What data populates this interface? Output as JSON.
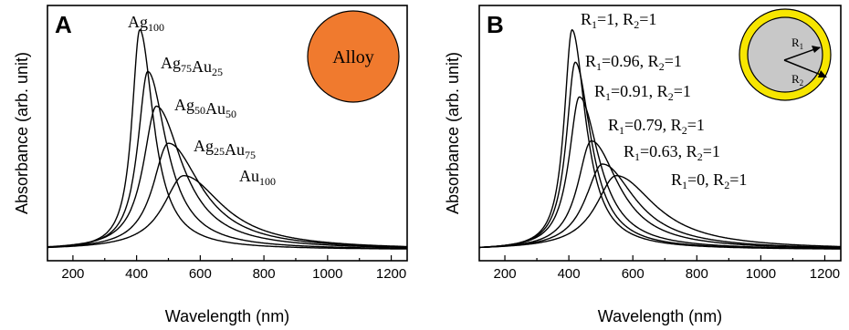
{
  "colors": {
    "alloy_circle": "#f07a2e",
    "shell_yellow": "#f7e600",
    "core_gray": "#c8c8c8",
    "curve": "#000000"
  },
  "chart_data": [
    {
      "panel": "A",
      "type": "line",
      "xlabel": "Wavelength (nm)",
      "ylabel": "Absorbance (arb. unit)",
      "xlim": [
        120,
        1250
      ],
      "xticks": [
        200,
        400,
        600,
        800,
        1000,
        1200
      ],
      "yticks": false,
      "badge": "Alloy",
      "series": [
        {
          "name": "Ag100",
          "label": {
            "base": "Ag",
            "sub": "100"
          },
          "peak_x": 410,
          "peak_y": 0.95,
          "hw_left": 30,
          "hw_right": 52
        },
        {
          "name": "Ag75Au25",
          "label": {
            "parts": [
              [
                "Ag",
                "75"
              ],
              [
                "Au",
                "25"
              ]
            ]
          },
          "peak_x": 435,
          "peak_y": 0.77,
          "hw_left": 38,
          "hw_right": 72
        },
        {
          "name": "Ag50Au50",
          "label": {
            "parts": [
              [
                "Ag",
                "50"
              ],
              [
                "Au",
                "50"
              ]
            ]
          },
          "peak_x": 462,
          "peak_y": 0.62,
          "hw_left": 50,
          "hw_right": 100
        },
        {
          "name": "Ag25Au75",
          "label": {
            "parts": [
              [
                "Ag",
                "25"
              ],
              [
                "Au",
                "75"
              ]
            ]
          },
          "peak_x": 500,
          "peak_y": 0.46,
          "hw_left": 60,
          "hw_right": 125
        },
        {
          "name": "Au100",
          "label": {
            "base": "Au",
            "sub": "100"
          },
          "peak_x": 548,
          "peak_y": 0.32,
          "hw_left": 78,
          "hw_right": 150
        }
      ]
    },
    {
      "panel": "B",
      "type": "line",
      "xlabel": "Wavelength (nm)",
      "ylabel": "Absorbance (arb. unit)",
      "xlim": [
        120,
        1250
      ],
      "xticks": [
        200,
        400,
        600,
        800,
        1000,
        1200
      ],
      "yticks": false,
      "inset": {
        "r1": "R",
        "r1_sub": "1",
        "r2": "R",
        "r2_sub": "2"
      },
      "series": [
        {
          "name": "R1=1, R2=1",
          "label": {
            "parts": [
              [
                "R",
                "1",
                "=1, "
              ],
              [
                "R",
                "2",
                "=1"
              ]
            ]
          },
          "peak_x": 410,
          "peak_y": 0.95,
          "hw_left": 30,
          "hw_right": 52
        },
        {
          "name": "R1=0.96, R2=1",
          "label": {
            "parts": [
              [
                "R",
                "1",
                "=0.96, "
              ],
              [
                "R",
                "2",
                "=1"
              ]
            ]
          },
          "peak_x": 420,
          "peak_y": 0.81,
          "hw_left": 34,
          "hw_right": 60
        },
        {
          "name": "R1=0.91, R2=1",
          "label": {
            "parts": [
              [
                "R",
                "1",
                "=0.91, "
              ],
              [
                "R",
                "2",
                "=1"
              ]
            ]
          },
          "peak_x": 433,
          "peak_y": 0.66,
          "hw_left": 40,
          "hw_right": 75
        },
        {
          "name": "R1=0.79, R2=1",
          "label": {
            "parts": [
              [
                "R",
                "1",
                "=0.79, "
              ],
              [
                "R",
                "2",
                "=1"
              ]
            ]
          },
          "peak_x": 470,
          "peak_y": 0.47,
          "hw_left": 52,
          "hw_right": 105
        },
        {
          "name": "R1=0.63, R2=1",
          "label": {
            "parts": [
              [
                "R",
                "1",
                "=0.63, "
              ],
              [
                "R",
                "2",
                "=1"
              ]
            ]
          },
          "peak_x": 505,
          "peak_y": 0.37,
          "hw_left": 65,
          "hw_right": 125
        },
        {
          "name": "R1=0, R2=1",
          "label": {
            "parts": [
              [
                "R",
                "1",
                "=0, "
              ],
              [
                "R",
                "2",
                "=1"
              ]
            ]
          },
          "peak_x": 548,
          "peak_y": 0.32,
          "hw_left": 78,
          "hw_right": 150
        }
      ]
    }
  ]
}
